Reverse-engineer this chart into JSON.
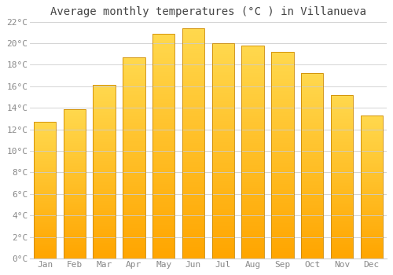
{
  "title": "Average monthly temperatures (°C ) in Villanueva",
  "months": [
    "Jan",
    "Feb",
    "Mar",
    "Apr",
    "May",
    "Jun",
    "Jul",
    "Aug",
    "Sep",
    "Oct",
    "Nov",
    "Dec"
  ],
  "values": [
    12.7,
    13.9,
    16.1,
    18.7,
    20.9,
    21.4,
    20.0,
    19.8,
    19.2,
    17.2,
    15.2,
    13.3
  ],
  "bar_color_top": "#FFD84D",
  "bar_color_bottom": "#FFA500",
  "bar_edge_color": "#CC8800",
  "background_color": "#FFFFFF",
  "plot_bg_color": "#FFFFFF",
  "grid_color": "#CCCCCC",
  "ylim": [
    0,
    22
  ],
  "yticks": [
    0,
    2,
    4,
    6,
    8,
    10,
    12,
    14,
    16,
    18,
    20,
    22
  ],
  "title_fontsize": 10,
  "tick_fontsize": 8,
  "tick_color": "#888888",
  "title_color": "#444444",
  "font_family": "monospace",
  "bar_width": 0.75
}
